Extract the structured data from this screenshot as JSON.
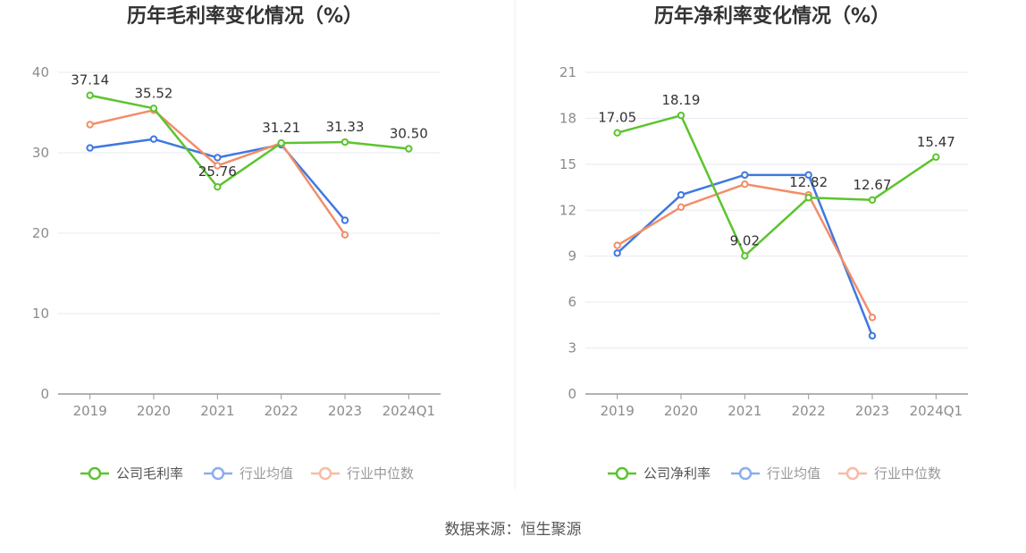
{
  "source": "数据来源：恒生聚源",
  "colors": {
    "company": "#5cc42e",
    "industry_avg": "#3f78e0",
    "industry_median": "#f28e6a",
    "grid": "#e6e9f2",
    "axis": "#999999"
  },
  "chart_data": [
    {
      "type": "line",
      "title": "历年毛利率变化情况（%）",
      "categories": [
        "2019",
        "2020",
        "2021",
        "2022",
        "2023",
        "2024Q1"
      ],
      "ylim": [
        0,
        40
      ],
      "yticks": [
        0,
        10,
        20,
        30,
        40
      ],
      "grid": true,
      "legend": "bottom",
      "series": [
        {
          "name": "公司毛利率",
          "key": "company",
          "values": [
            37.14,
            35.52,
            25.76,
            31.21,
            31.33,
            30.5
          ],
          "labels": [
            "37.14",
            "35.52",
            "25.76",
            "31.21",
            "31.33",
            "30.50"
          ]
        },
        {
          "name": "行业均值",
          "key": "industry_avg",
          "values": [
            30.6,
            31.7,
            29.4,
            31.0,
            21.6,
            null
          ]
        },
        {
          "name": "行业中位数",
          "key": "industry_median",
          "values": [
            33.5,
            35.3,
            28.4,
            31.2,
            19.8,
            null
          ]
        }
      ]
    },
    {
      "type": "line",
      "title": "历年净利率变化情况（%）",
      "categories": [
        "2019",
        "2020",
        "2021",
        "2022",
        "2023",
        "2024Q1"
      ],
      "ylim": [
        0,
        21
      ],
      "yticks": [
        0,
        3,
        6,
        9,
        12,
        15,
        18,
        21
      ],
      "grid": true,
      "legend": "bottom",
      "series": [
        {
          "name": "公司净利率",
          "key": "company",
          "values": [
            17.05,
            18.19,
            9.02,
            12.82,
            12.67,
            15.47
          ],
          "labels": [
            "17.05",
            "18.19",
            "9.02",
            "12.82",
            "12.67",
            "15.47"
          ]
        },
        {
          "name": "行业均值",
          "key": "industry_avg",
          "values": [
            9.2,
            13.0,
            14.3,
            14.3,
            3.8,
            null
          ]
        },
        {
          "name": "行业中位数",
          "key": "industry_median",
          "values": [
            9.7,
            12.2,
            13.7,
            13.0,
            5.0,
            null
          ]
        }
      ]
    }
  ]
}
